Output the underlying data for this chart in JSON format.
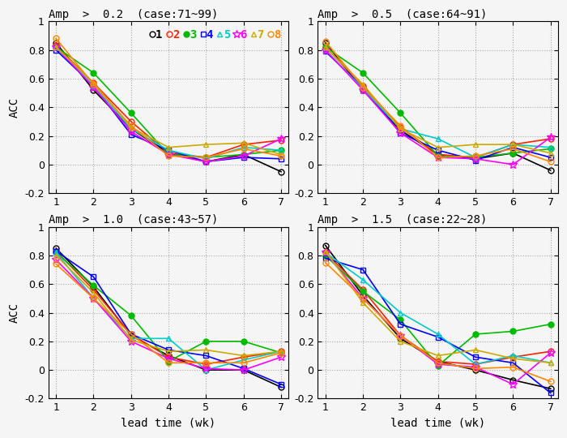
{
  "titles": [
    "Amp  >  0.2  (case:71~99)",
    "Amp  >  0.5  (case:64~91)",
    "Amp  >  1.0  (case:43~57)",
    "Amp  >  1.5  (case:22~28)"
  ],
  "xlim": [
    1,
    7
  ],
  "ylim": [
    -0.2,
    1.0
  ],
  "yticks": [
    -0.2,
    0.0,
    0.2,
    0.4,
    0.6,
    0.8,
    1.0
  ],
  "ytick_labels": [
    "-0.2",
    "0",
    "0.2",
    "0.4",
    "0.6",
    "0.8",
    "1"
  ],
  "xticks": [
    1,
    2,
    3,
    4,
    5,
    6,
    7
  ],
  "xlabel": "lead time (wk)",
  "ylabel": "ACC",
  "phase_colors": [
    "#000000",
    "#ff2200",
    "#00bb00",
    "#0000ff",
    "#00cccc",
    "#ff00ff",
    "#ccaa00",
    "#ff8800"
  ],
  "data": {
    "panel0": [
      [
        0.85,
        0.52,
        0.25,
        0.08,
        0.02,
        0.07,
        -0.05
      ],
      [
        0.83,
        0.57,
        0.3,
        0.08,
        0.05,
        0.14,
        0.17
      ],
      [
        0.82,
        0.64,
        0.36,
        0.07,
        0.05,
        0.07,
        0.1
      ],
      [
        0.8,
        0.55,
        0.21,
        0.1,
        0.02,
        0.05,
        0.04
      ],
      [
        0.82,
        0.55,
        0.25,
        0.1,
        0.04,
        0.12,
        0.1
      ],
      [
        0.82,
        0.54,
        0.23,
        0.07,
        0.02,
        0.06,
        0.18
      ],
      [
        0.82,
        0.57,
        0.26,
        0.12,
        0.14,
        0.15,
        0.07
      ],
      [
        0.88,
        0.56,
        0.27,
        0.06,
        0.05,
        0.11,
        0.06
      ]
    ],
    "panel1": [
      [
        0.85,
        0.52,
        0.24,
        0.07,
        0.04,
        0.08,
        -0.04
      ],
      [
        0.82,
        0.55,
        0.26,
        0.07,
        0.05,
        0.14,
        0.18
      ],
      [
        0.82,
        0.64,
        0.36,
        0.06,
        0.05,
        0.08,
        0.11
      ],
      [
        0.79,
        0.54,
        0.22,
        0.1,
        0.03,
        0.12,
        0.05
      ],
      [
        0.8,
        0.53,
        0.25,
        0.18,
        0.05,
        0.14,
        0.12
      ],
      [
        0.8,
        0.52,
        0.22,
        0.05,
        0.04,
        0.0,
        0.19
      ],
      [
        0.82,
        0.56,
        0.25,
        0.12,
        0.14,
        0.14,
        0.08
      ],
      [
        0.86,
        0.54,
        0.27,
        0.05,
        0.06,
        0.11,
        0.02
      ]
    ],
    "panel2": [
      [
        0.85,
        0.58,
        0.24,
        0.1,
        0.0,
        0.0,
        -0.12
      ],
      [
        0.83,
        0.56,
        0.25,
        0.09,
        0.04,
        0.09,
        0.13
      ],
      [
        0.82,
        0.59,
        0.38,
        0.06,
        0.2,
        0.2,
        0.12
      ],
      [
        0.83,
        0.65,
        0.25,
        0.14,
        0.1,
        0.01,
        -0.1
      ],
      [
        0.82,
        0.5,
        0.22,
        0.22,
        0.0,
        0.07,
        0.13
      ],
      [
        0.77,
        0.5,
        0.2,
        0.08,
        0.01,
        0.0,
        0.09
      ],
      [
        0.8,
        0.54,
        0.21,
        0.13,
        0.14,
        0.1,
        0.13
      ],
      [
        0.74,
        0.5,
        0.25,
        0.05,
        0.05,
        0.05,
        0.12
      ]
    ],
    "panel3": [
      [
        0.87,
        0.52,
        0.22,
        0.06,
        0.0,
        -0.07,
        -0.13
      ],
      [
        0.82,
        0.56,
        0.24,
        0.06,
        0.04,
        0.09,
        0.13
      ],
      [
        0.8,
        0.55,
        0.35,
        0.03,
        0.25,
        0.27,
        0.32
      ],
      [
        0.78,
        0.7,
        0.32,
        0.23,
        0.09,
        0.05,
        -0.16
      ],
      [
        0.82,
        0.63,
        0.4,
        0.25,
        0.04,
        0.1,
        0.05
      ],
      [
        0.82,
        0.5,
        0.24,
        0.04,
        0.02,
        -0.1,
        0.12
      ],
      [
        0.83,
        0.47,
        0.2,
        0.1,
        0.14,
        0.08,
        0.05
      ],
      [
        0.75,
        0.5,
        0.24,
        0.05,
        0.01,
        0.02,
        -0.08
      ]
    ]
  },
  "bg_color": "#f0f0f0",
  "grid_color": "#aaaaaa",
  "title_fontsize": 10,
  "label_fontsize": 10,
  "tick_fontsize": 9,
  "legend_fontsize": 10
}
